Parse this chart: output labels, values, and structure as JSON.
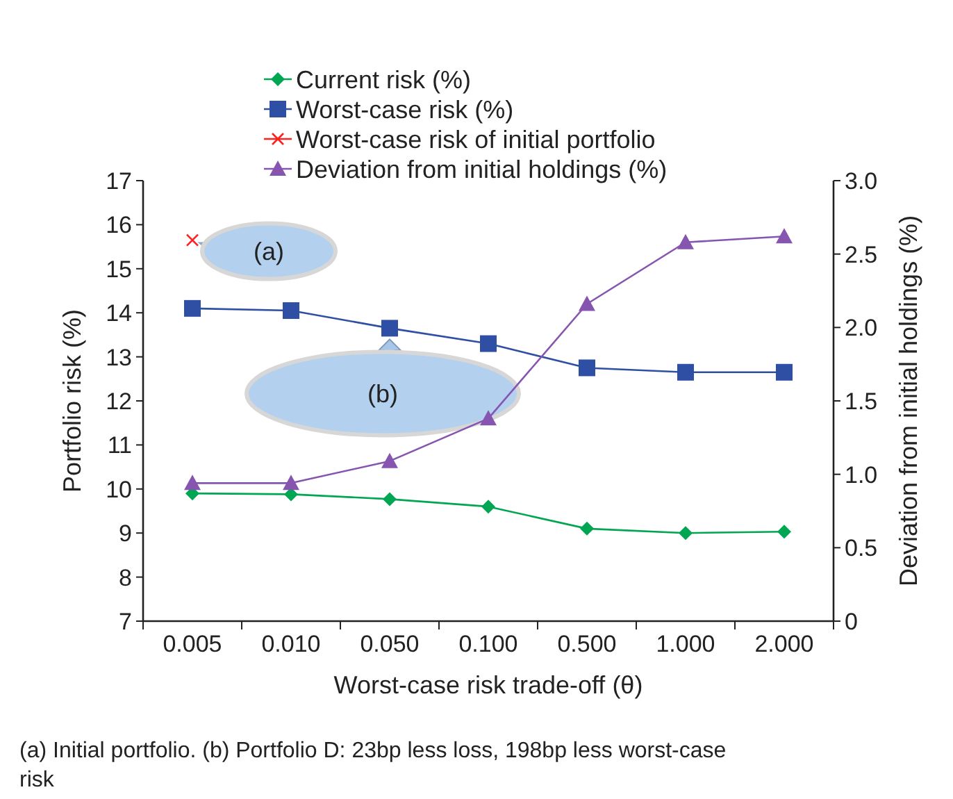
{
  "chart_data": {
    "type": "line",
    "xlabel": "Worst-case risk trade-off (θ)",
    "ylabel": "Portfolio risk (%)",
    "y2label": "Deviation from initial holdings (%)",
    "categories": [
      "0.005",
      "0.010",
      "0.050",
      "0.100",
      "0.500",
      "1.000",
      "2.000"
    ],
    "ylim": [
      7,
      17
    ],
    "yticks": [
      7,
      8,
      9,
      10,
      11,
      12,
      13,
      14,
      15,
      16,
      17
    ],
    "y2lim": [
      0,
      3
    ],
    "y2ticks": [
      {
        "value": 0,
        "label": "0"
      },
      {
        "value": 0.5,
        "label": "0.5"
      },
      {
        "value": 1,
        "label": "1.0"
      },
      {
        "value": 1.5,
        "label": "1.5"
      },
      {
        "value": 2,
        "label": "2.0"
      },
      {
        "value": 2.5,
        "label": "2.5"
      },
      {
        "value": 3,
        "label": "3.0"
      }
    ],
    "series": [
      {
        "name": "Current risk (%)",
        "color": "#00a651",
        "marker": "diamond",
        "values": [
          9.9,
          9.88,
          9.77,
          9.6,
          9.1,
          9.0,
          9.03
        ]
      },
      {
        "name": "Worst-case risk (%)",
        "color": "#2e4fa3",
        "marker": "square",
        "values": [
          14.1,
          14.05,
          13.65,
          13.3,
          12.75,
          12.65,
          12.65
        ]
      },
      {
        "name": "Worst-case risk of initial portfolio",
        "type": "scatter",
        "color": "#ff2020",
        "marker": "cross",
        "values": [
          15.65,
          null,
          null,
          null,
          null,
          null,
          null
        ]
      },
      {
        "name": "Deviation from initial holdings (%)",
        "color": "#8655b0",
        "marker": "triangle",
        "axis": "y2",
        "values": [
          0.94,
          0.94,
          1.09,
          1.38,
          2.16,
          2.58,
          2.62
        ]
      }
    ],
    "legend": "top",
    "grid": false,
    "annotations": [
      {
        "text": "(a)",
        "x": "0.005",
        "y": 15.65
      },
      {
        "text": "(b)",
        "x": "0.050",
        "y": 13.65
      },
      "(a) Initial portfolio. (b) Portfolio D: 23bp less loss, 198bp less worst-case risk"
    ]
  }
}
